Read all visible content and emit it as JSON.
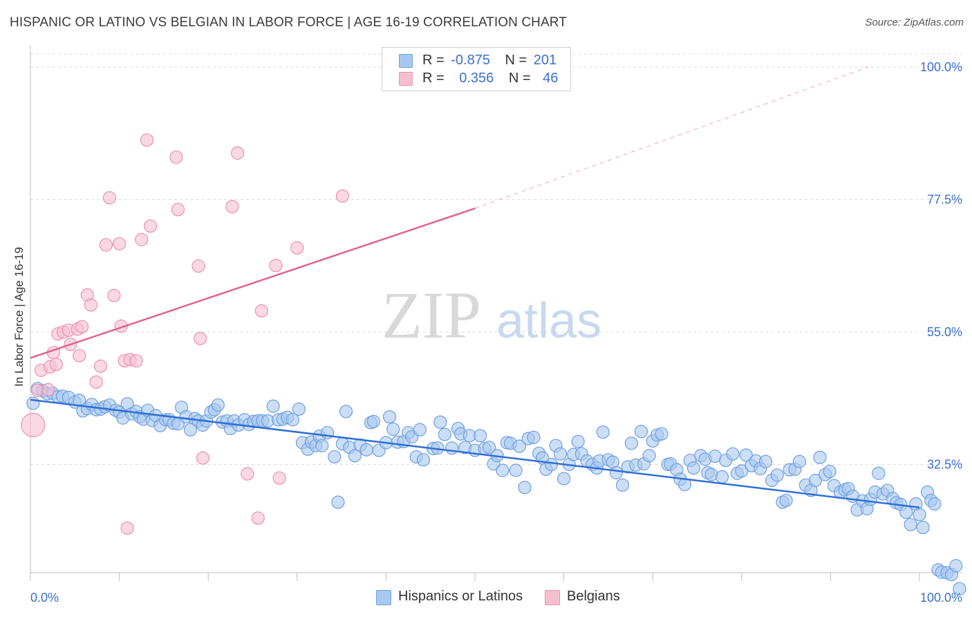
{
  "title": "HISPANIC OR LATINO VS BELGIAN IN LABOR FORCE | AGE 16-19 CORRELATION CHART",
  "source": "Source: ZipAtlas.com",
  "watermark": {
    "zip": "ZIP",
    "atlas": "atlas"
  },
  "legend": {
    "rows": [
      {
        "r_label": "R =",
        "r_value": "-0.875",
        "n_label": "N =",
        "n_value": "201"
      },
      {
        "r_label": "R =",
        "r_value": "0.356",
        "n_label": "N =",
        "n_value": "46"
      }
    ]
  },
  "bottom_legend": [
    "Hispanics or Latinos",
    "Belgians"
  ],
  "colors": {
    "blue_fill": "#a9c8f0",
    "blue_stroke": "#6e9fe0",
    "blue_line": "#2f6fd6",
    "pink_fill": "#f6bfd0",
    "pink_stroke": "#ec8fae",
    "pink_line": "#e2628d",
    "tick_text": "#3a6fd0",
    "grid": "#dcdcdc"
  },
  "chart_data": {
    "type": "scatter",
    "xlabel": "",
    "ylabel": "In Labor Force | Age 16-19",
    "xlim": [
      0,
      100
    ],
    "ylim": [
      8,
      102
    ],
    "x_tick_labels": [
      "0.0%",
      "100.0%"
    ],
    "y_ticks": [
      100.0,
      77.5,
      55.0,
      32.5
    ],
    "y_tick_labels": [
      "100.0%",
      "77.5%",
      "55.0%",
      "32.5%"
    ],
    "grid": "horizontal dashed",
    "series": [
      {
        "name": "Hispanics or Latinos",
        "r": -0.875,
        "n": 201,
        "trend": {
          "x0": 0,
          "y0": 43.5,
          "x1": 100,
          "y1": 25.2
        },
        "points": [
          [
            0.3,
            42.9
          ],
          [
            0.8,
            45.4
          ],
          [
            1.4,
            45.0
          ],
          [
            1.9,
            44.5
          ],
          [
            2.5,
            44.6
          ],
          [
            3.1,
            44.0
          ],
          [
            3.6,
            44.1
          ],
          [
            4.3,
            43.9
          ],
          [
            5.0,
            43.1
          ],
          [
            5.5,
            43.4
          ],
          [
            5.9,
            41.6
          ],
          [
            6.4,
            42.0
          ],
          [
            6.9,
            42.7
          ],
          [
            7.4,
            41.8
          ],
          [
            7.9,
            41.9
          ],
          [
            8.4,
            42.3
          ],
          [
            8.9,
            42.6
          ],
          [
            9.6,
            41.7
          ],
          [
            10.0,
            41.4
          ],
          [
            10.4,
            40.4
          ],
          [
            10.9,
            42.8
          ],
          [
            11.4,
            41.1
          ],
          [
            11.9,
            41.5
          ],
          [
            12.3,
            40.6
          ],
          [
            12.7,
            40.2
          ],
          [
            13.2,
            41.7
          ],
          [
            13.7,
            40.0
          ],
          [
            14.1,
            40.8
          ],
          [
            14.6,
            39.1
          ],
          [
            15.2,
            40.1
          ],
          [
            15.6,
            40.1
          ],
          [
            16.1,
            39.5
          ],
          [
            16.6,
            39.4
          ],
          [
            17.0,
            42.2
          ],
          [
            17.5,
            40.6
          ],
          [
            18.0,
            38.4
          ],
          [
            18.5,
            40.3
          ],
          [
            18.9,
            39.9
          ],
          [
            19.4,
            39.2
          ],
          [
            19.8,
            39.9
          ],
          [
            20.3,
            41.4
          ],
          [
            20.7,
            41.8
          ],
          [
            21.1,
            42.6
          ],
          [
            21.6,
            39.7
          ],
          [
            22.1,
            39.9
          ],
          [
            22.5,
            38.6
          ],
          [
            22.9,
            39.9
          ],
          [
            23.4,
            39.2
          ],
          [
            24.1,
            40.1
          ],
          [
            24.6,
            39.3
          ],
          [
            25.1,
            39.8
          ],
          [
            25.6,
            39.9
          ],
          [
            26.1,
            39.9
          ],
          [
            26.7,
            39.9
          ],
          [
            27.3,
            42.4
          ],
          [
            27.9,
            40.1
          ],
          [
            28.4,
            40.2
          ],
          [
            28.9,
            40.5
          ],
          [
            29.5,
            40.1
          ],
          [
            30.2,
            41.9
          ],
          [
            30.6,
            36.2
          ],
          [
            31.2,
            35.1
          ],
          [
            31.6,
            36.3
          ],
          [
            32.1,
            35.7
          ],
          [
            32.5,
            37.3
          ],
          [
            32.8,
            35.7
          ],
          [
            33.4,
            37.9
          ],
          [
            34.2,
            33.8
          ],
          [
            34.6,
            26.1
          ],
          [
            35.1,
            36.0
          ],
          [
            35.5,
            41.5
          ],
          [
            35.9,
            35.4
          ],
          [
            36.5,
            34.0
          ],
          [
            37.1,
            35.8
          ],
          [
            37.8,
            35.0
          ],
          [
            38.3,
            39.6
          ],
          [
            38.6,
            39.8
          ],
          [
            39.2,
            34.9
          ],
          [
            40.0,
            36.2
          ],
          [
            40.4,
            40.6
          ],
          [
            40.8,
            38.5
          ],
          [
            41.3,
            36.3
          ],
          [
            42.0,
            36.4
          ],
          [
            42.5,
            37.9
          ],
          [
            42.9,
            37.2
          ],
          [
            43.4,
            33.8
          ],
          [
            43.8,
            38.4
          ],
          [
            44.2,
            33.3
          ],
          [
            45.3,
            35.2
          ],
          [
            45.8,
            35.3
          ],
          [
            46.1,
            39.7
          ],
          [
            46.6,
            37.6
          ],
          [
            47.4,
            35.3
          ],
          [
            48.1,
            38.6
          ],
          [
            48.4,
            37.7
          ],
          [
            48.9,
            35.4
          ],
          [
            49.4,
            37.4
          ],
          [
            50.0,
            34.9
          ],
          [
            50.6,
            37.4
          ],
          [
            51.1,
            35.2
          ],
          [
            51.6,
            35.4
          ],
          [
            52.1,
            32.6
          ],
          [
            52.5,
            34.0
          ],
          [
            53.1,
            31.5
          ],
          [
            53.6,
            36.2
          ],
          [
            54.0,
            36.1
          ],
          [
            54.6,
            31.5
          ],
          [
            55.0,
            35.6
          ],
          [
            55.6,
            28.6
          ],
          [
            56.0,
            36.9
          ],
          [
            56.6,
            37.1
          ],
          [
            57.2,
            34.4
          ],
          [
            57.6,
            33.6
          ],
          [
            58.0,
            31.7
          ],
          [
            58.6,
            32.5
          ],
          [
            59.1,
            35.7
          ],
          [
            59.6,
            34.3
          ],
          [
            60.0,
            30.1
          ],
          [
            60.6,
            32.5
          ],
          [
            61.1,
            34.2
          ],
          [
            61.6,
            36.4
          ],
          [
            62.0,
            34.3
          ],
          [
            62.6,
            33.1
          ],
          [
            63.2,
            32.5
          ],
          [
            63.7,
            31.9
          ],
          [
            64.0,
            33.1
          ],
          [
            64.4,
            38.0
          ],
          [
            65.0,
            33.3
          ],
          [
            65.5,
            32.9
          ],
          [
            65.9,
            31.1
          ],
          [
            66.6,
            29.0
          ],
          [
            67.2,
            32.1
          ],
          [
            67.6,
            36.1
          ],
          [
            68.1,
            32.4
          ],
          [
            68.7,
            38.1
          ],
          [
            69.0,
            32.6
          ],
          [
            69.6,
            34.0
          ],
          [
            70.0,
            36.5
          ],
          [
            70.5,
            37.5
          ],
          [
            71.0,
            37.7
          ],
          [
            71.7,
            32.5
          ],
          [
            72.0,
            32.6
          ],
          [
            72.7,
            31.6
          ],
          [
            73.1,
            30.0
          ],
          [
            73.6,
            29.1
          ],
          [
            74.2,
            33.2
          ],
          [
            74.6,
            31.9
          ],
          [
            75.4,
            34.0
          ],
          [
            75.9,
            33.4
          ],
          [
            76.2,
            31.1
          ],
          [
            76.6,
            30.8
          ],
          [
            77.0,
            33.9
          ],
          [
            77.8,
            30.4
          ],
          [
            78.2,
            33.2
          ],
          [
            79.0,
            34.3
          ],
          [
            79.5,
            31.0
          ],
          [
            80.0,
            31.4
          ],
          [
            80.5,
            34.1
          ],
          [
            81.1,
            32.3
          ],
          [
            81.6,
            33.1
          ],
          [
            82.1,
            31.8
          ],
          [
            82.7,
            33.0
          ],
          [
            83.4,
            29.8
          ],
          [
            84.0,
            30.7
          ],
          [
            84.6,
            26.1
          ],
          [
            85.0,
            26.4
          ],
          [
            85.4,
            31.6
          ],
          [
            86.0,
            31.7
          ],
          [
            86.5,
            33.0
          ],
          [
            87.2,
            29.0
          ],
          [
            87.8,
            28.1
          ],
          [
            88.3,
            29.8
          ],
          [
            88.8,
            33.7
          ],
          [
            89.4,
            30.8
          ],
          [
            89.9,
            31.3
          ],
          [
            90.4,
            28.9
          ],
          [
            91.1,
            27.8
          ],
          [
            91.6,
            28.2
          ],
          [
            92.0,
            28.4
          ],
          [
            92.5,
            27.1
          ],
          [
            93.0,
            24.8
          ],
          [
            93.6,
            26.3
          ],
          [
            94.1,
            25.0
          ],
          [
            94.5,
            26.6
          ],
          [
            95.0,
            27.8
          ],
          [
            95.4,
            31.0
          ],
          [
            95.9,
            27.5
          ],
          [
            96.4,
            28.1
          ],
          [
            97.0,
            26.7
          ],
          [
            97.4,
            26.0
          ],
          [
            97.9,
            25.7
          ],
          [
            98.5,
            24.4
          ],
          [
            99.0,
            22.3
          ],
          [
            99.6,
            25.8
          ],
          [
            100.0,
            24.0
          ],
          [
            100.4,
            21.8
          ],
          [
            100.9,
            27.8
          ],
          [
            101.3,
            26.4
          ],
          [
            101.7,
            25.8
          ],
          [
            102.1,
            14.6
          ],
          [
            102.5,
            14.2
          ],
          [
            103.1,
            14.1
          ],
          [
            103.6,
            13.8
          ],
          [
            104.1,
            15.3
          ],
          [
            104.5,
            11.4
          ]
        ]
      },
      {
        "name": "Belgians",
        "r": 0.356,
        "n": 46,
        "trend": {
          "x0": 0,
          "y0": 50.6,
          "x1": 50,
          "y1": 76.0
        },
        "trend_extension": {
          "x0": 50,
          "y0": 76.0,
          "x1": 94.2,
          "y1": 100.0
        },
        "points": [
          [
            0.3,
            39.2
          ],
          [
            0.8,
            45.1
          ],
          [
            1.2,
            48.5
          ],
          [
            2.0,
            45.2
          ],
          [
            2.2,
            49.1
          ],
          [
            2.6,
            51.5
          ],
          [
            2.9,
            49.5
          ],
          [
            3.1,
            54.7
          ],
          [
            3.7,
            55.0
          ],
          [
            4.3,
            55.3
          ],
          [
            4.5,
            52.9
          ],
          [
            5.3,
            55.5
          ],
          [
            5.5,
            51.0
          ],
          [
            5.8,
            55.9
          ],
          [
            6.4,
            61.3
          ],
          [
            6.8,
            59.6
          ],
          [
            7.4,
            46.5
          ],
          [
            7.9,
            49.2
          ],
          [
            8.5,
            69.8
          ],
          [
            8.9,
            77.8
          ],
          [
            9.4,
            61.2
          ],
          [
            10.0,
            70.0
          ],
          [
            10.2,
            56.0
          ],
          [
            10.6,
            50.1
          ],
          [
            10.9,
            21.7
          ],
          [
            11.2,
            50.3
          ],
          [
            11.9,
            50.1
          ],
          [
            12.5,
            70.7
          ],
          [
            13.1,
            87.6
          ],
          [
            13.5,
            73.0
          ],
          [
            16.4,
            84.7
          ],
          [
            16.6,
            75.8
          ],
          [
            18.9,
            66.2
          ],
          [
            19.1,
            53.9
          ],
          [
            19.4,
            33.6
          ],
          [
            22.7,
            76.3
          ],
          [
            23.3,
            85.4
          ],
          [
            24.4,
            30.9
          ],
          [
            25.6,
            23.4
          ],
          [
            26.0,
            58.6
          ],
          [
            27.6,
            66.3
          ],
          [
            28.0,
            30.2
          ],
          [
            30.0,
            69.3
          ],
          [
            35.1,
            78.1
          ]
        ]
      }
    ]
  }
}
